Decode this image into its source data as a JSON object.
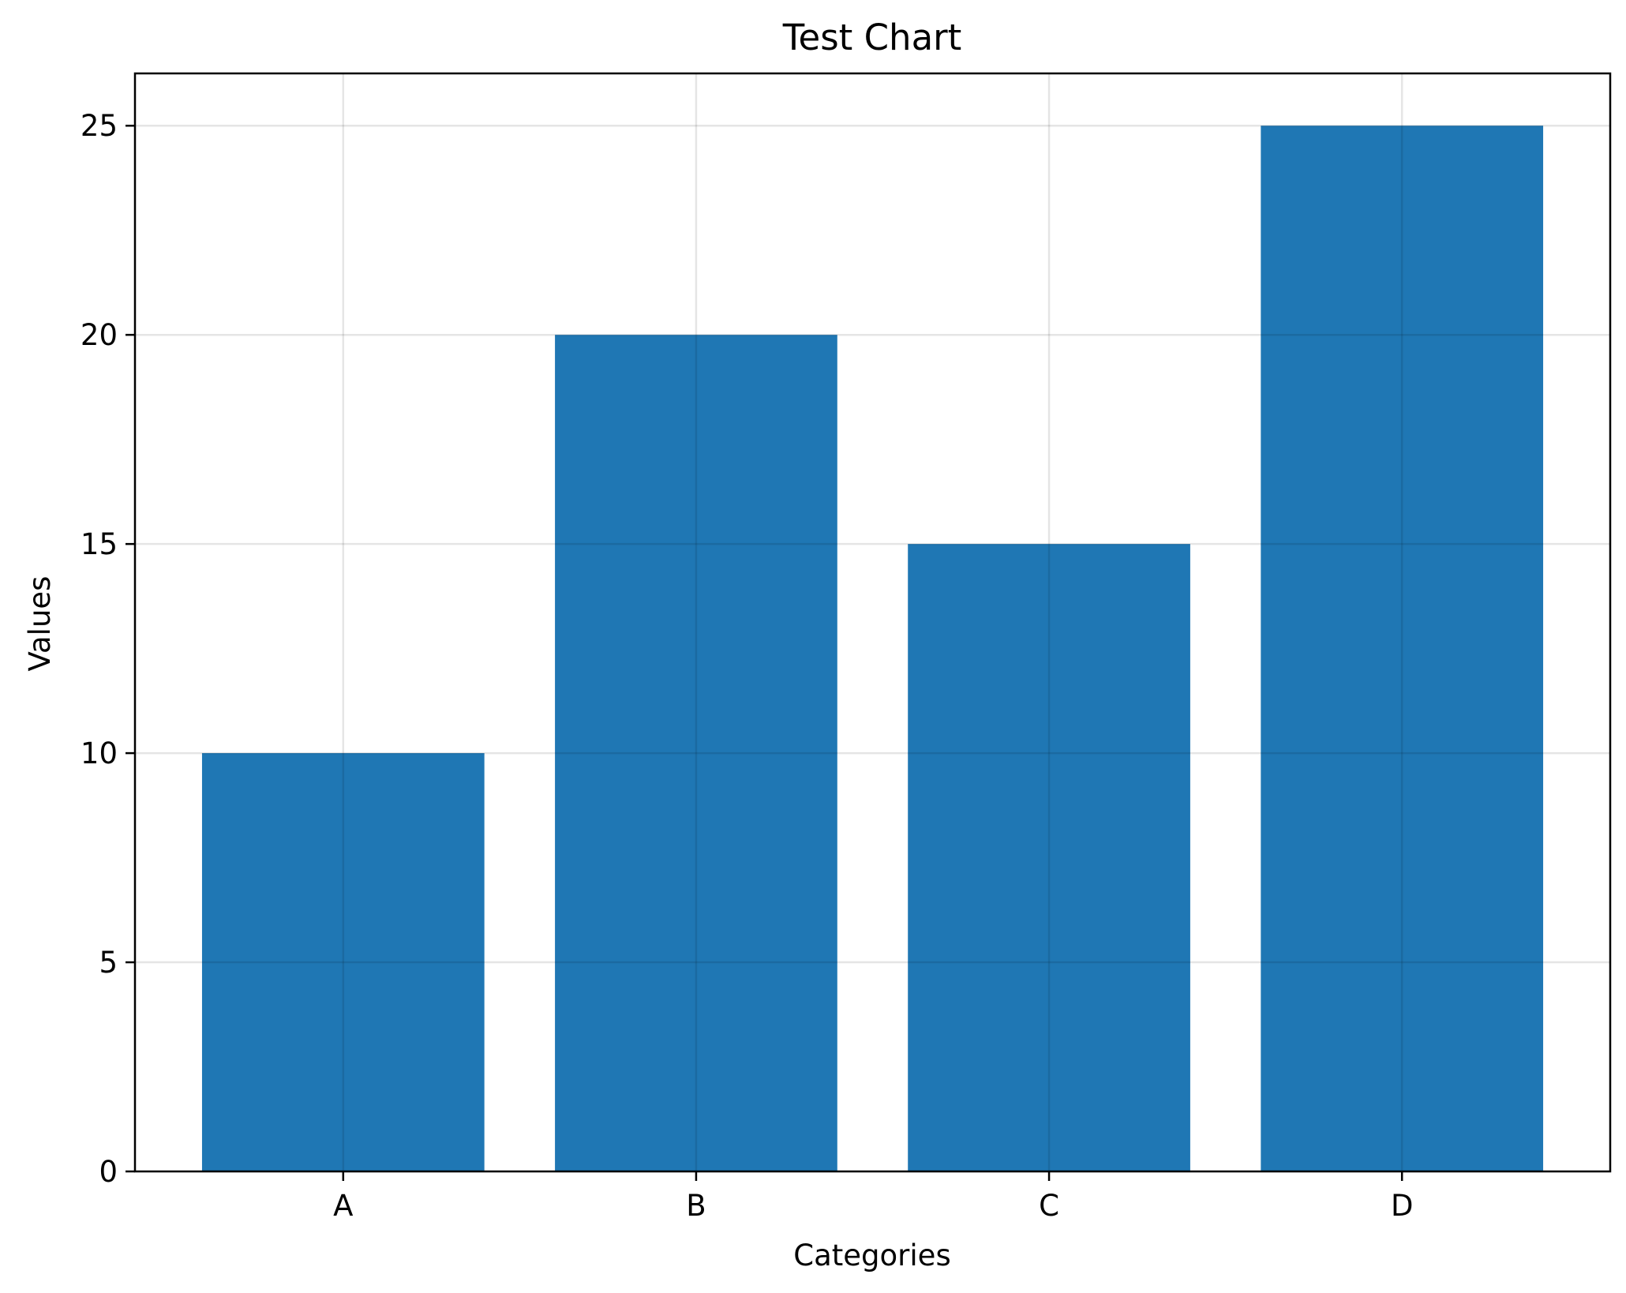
{
  "chart_data": {
    "type": "bar",
    "title": "Test Chart",
    "xlabel": "Categories",
    "ylabel": "Values",
    "categories": [
      "A",
      "B",
      "C",
      "D"
    ],
    "values": [
      10,
      20,
      15,
      25
    ],
    "ylim": [
      0,
      26.25
    ],
    "yticks": [
      0,
      5,
      10,
      15,
      20,
      25
    ],
    "grid": true,
    "bar_color": "#1f77b4"
  }
}
